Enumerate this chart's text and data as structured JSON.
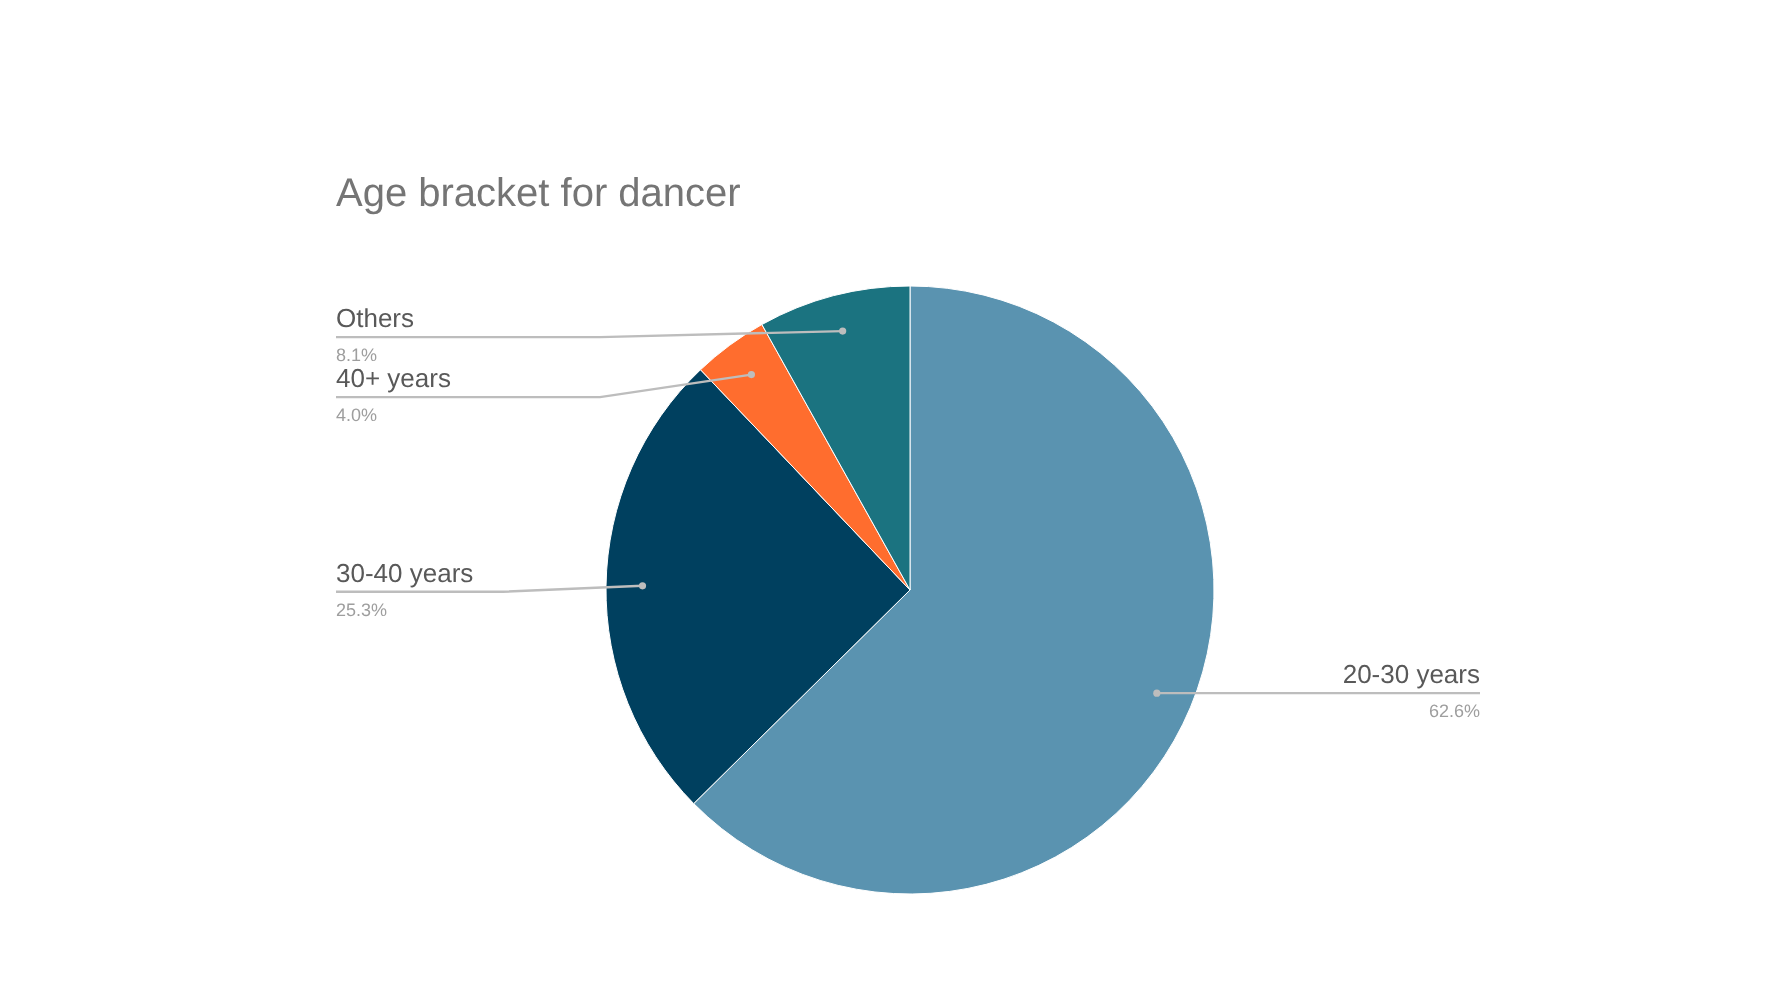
{
  "chart_data": {
    "type": "pie",
    "title": "Age bracket for dancer",
    "categories": [
      "20-30 years",
      "30-40 years",
      "40+ years",
      "Others"
    ],
    "values": [
      62.6,
      25.3,
      4.0,
      8.1
    ],
    "colors": [
      "#5a93b0",
      "#00405f",
      "#ff6d2e",
      "#1b7380"
    ],
    "value_labels": [
      "62.6%",
      "25.3%",
      "4.0%",
      "8.1%"
    ]
  }
}
